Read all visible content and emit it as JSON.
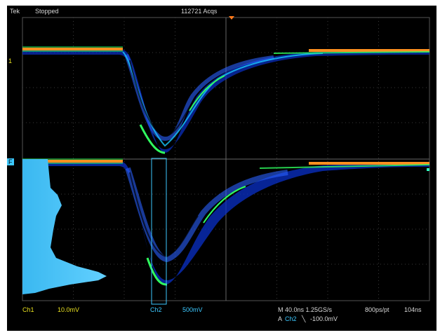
{
  "header": {
    "brand": "Tek",
    "mode": "Stopped",
    "acquisitions": "112721 Acqs"
  },
  "markers": {
    "ch1_level": "1",
    "ch2_level": "F",
    "colors": {
      "ch1": "#e8e020",
      "ch2": "#3cc8ff",
      "math": "#ff7a1a"
    }
  },
  "footer": {
    "ch1_label": "Ch1",
    "ch1_scale": "10.0mV",
    "ch2_label": "Ch2",
    "ch2_scale": "500mV",
    "timebase": "M 40.0ns 1.25GS/s",
    "record": "800ps/pt",
    "position": "104ns",
    "trigger_prefix": "A",
    "trigger_source": "Ch2",
    "trigger_slope_icon": "falling-edge-icon",
    "trigger_level": "-100.0mV"
  }
}
